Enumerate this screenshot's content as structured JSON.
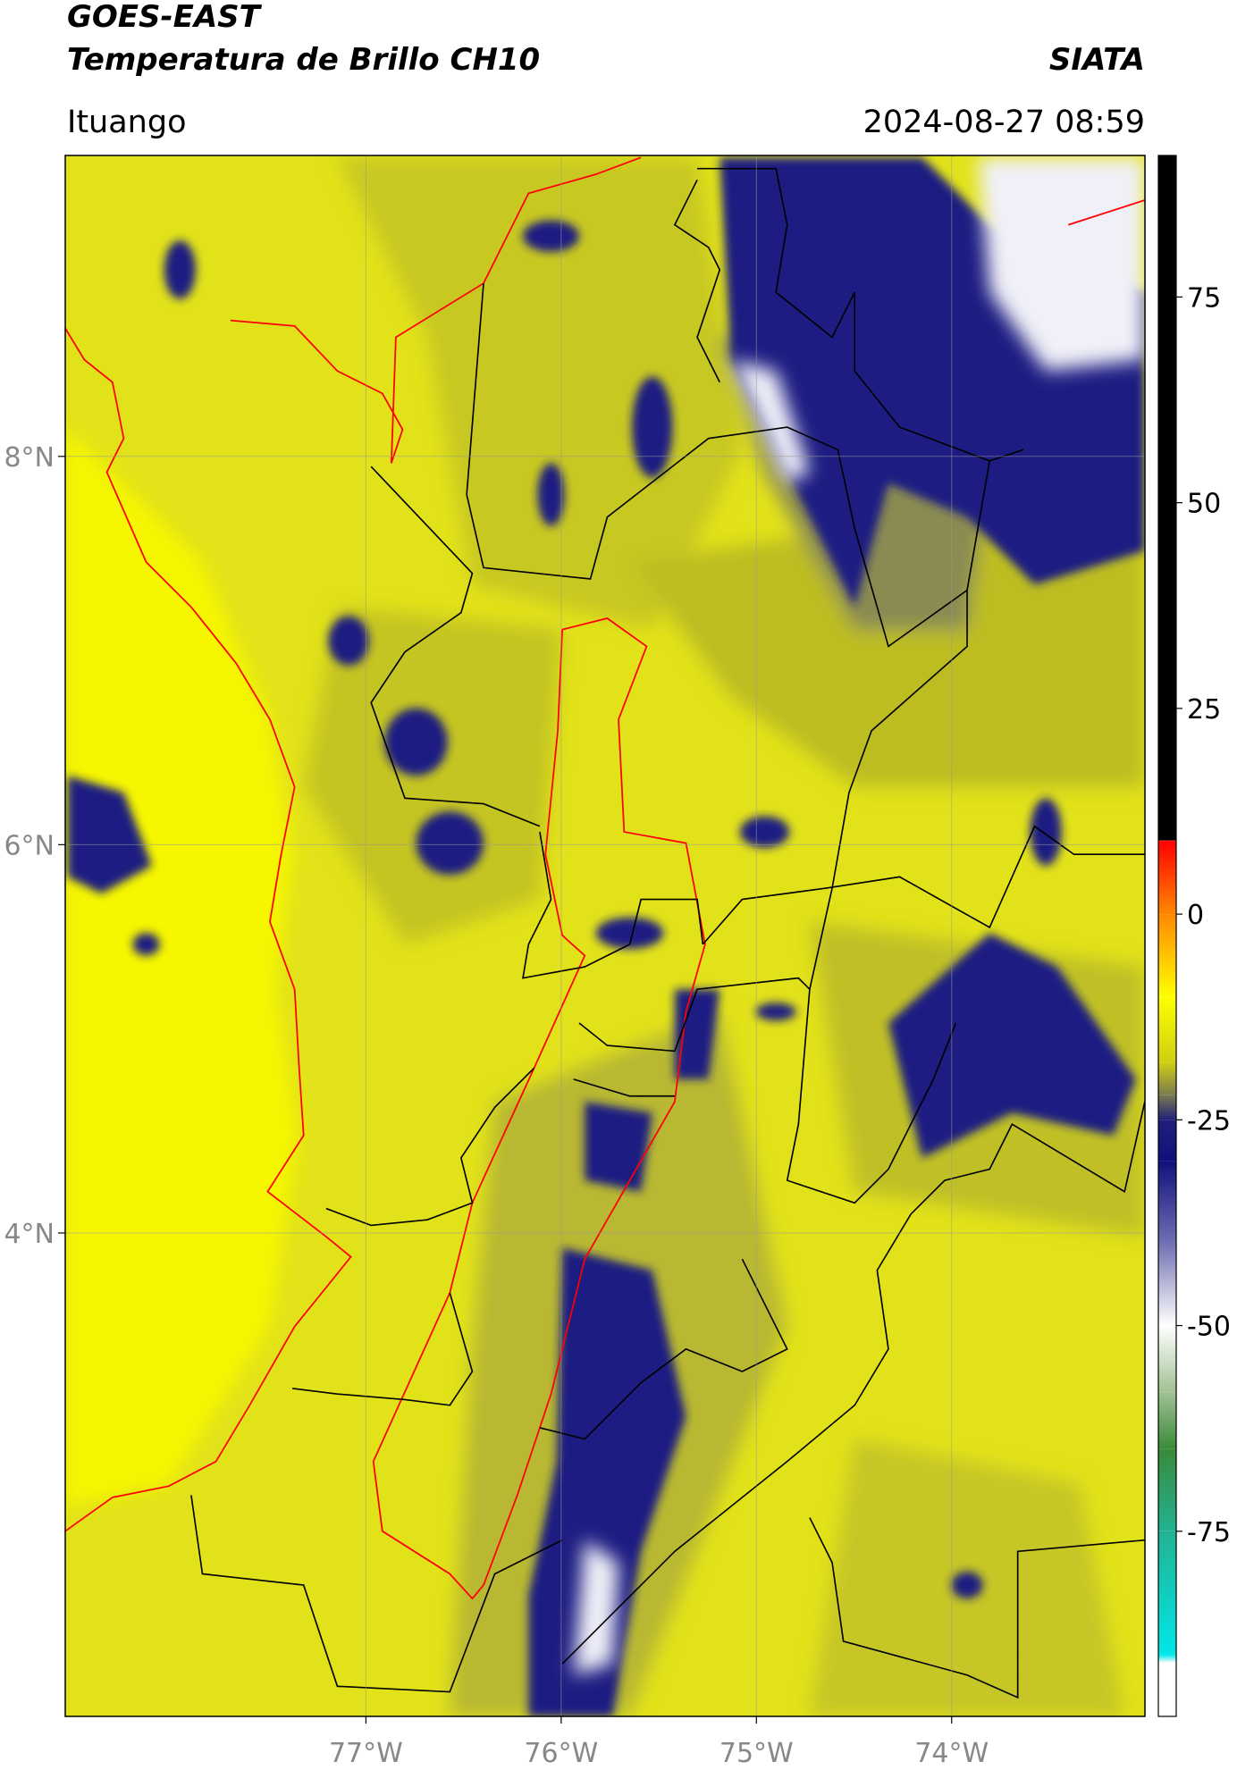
{
  "header": {
    "title_line1": "GOES-EAST",
    "title_line2": "Temperatura de Brillo CH10",
    "organization": "SIATA",
    "location": "Ituango",
    "datetime": "2024-08-27 08:59"
  },
  "map": {
    "lonlim": [
      -78.54,
      -73.01
    ],
    "latlim": [
      1.51,
      9.55
    ],
    "xticks": [
      {
        "value": -77,
        "label": "77°W"
      },
      {
        "value": -76,
        "label": "76°W"
      },
      {
        "value": -75,
        "label": "75°W"
      },
      {
        "value": -74,
        "label": "74°W"
      }
    ],
    "yticks": [
      {
        "value": 8,
        "label": "8°N"
      },
      {
        "value": 6,
        "label": "6°N"
      },
      {
        "value": 4,
        "label": "4°N"
      }
    ],
    "grid": true
  },
  "colorbar": {
    "lim": [
      -97.5,
      92.2
    ],
    "ticks": [
      75,
      50,
      25,
      0,
      -25,
      -50,
      -75
    ],
    "colormap": [
      {
        "value": 92.2,
        "color": "#000000"
      },
      {
        "value": 9,
        "color": "#000000"
      },
      {
        "value": 8.9,
        "color": "#ff0000"
      },
      {
        "value": 0,
        "color": "#ff8800"
      },
      {
        "value": -10,
        "color": "#ffff00"
      },
      {
        "value": -18,
        "color": "#cfcf12"
      },
      {
        "value": -22,
        "color": "#7a7a52"
      },
      {
        "value": -25,
        "color": "#20207a"
      },
      {
        "value": -30,
        "color": "#10107c"
      },
      {
        "value": -40,
        "color": "#7070b4"
      },
      {
        "value": -50,
        "color": "#ffffff"
      },
      {
        "value": -58,
        "color": "#a2c294"
      },
      {
        "value": -65,
        "color": "#3a8a3a"
      },
      {
        "value": -75,
        "color": "#22b292"
      },
      {
        "value": -90,
        "color": "#00e8e8"
      },
      {
        "value": -91,
        "color": "#ffffff"
      },
      {
        "value": -97.5,
        "color": "#ffffff"
      }
    ]
  }
}
